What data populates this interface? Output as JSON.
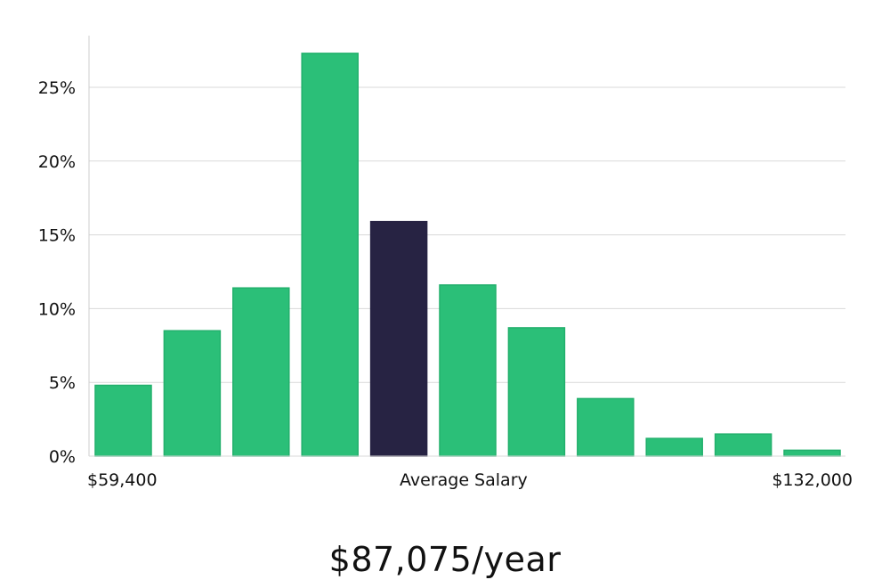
{
  "chart_data": {
    "type": "bar",
    "values": [
      4.8,
      8.5,
      11.4,
      27.3,
      15.9,
      11.6,
      8.7,
      3.9,
      1.2,
      1.5,
      0.4
    ],
    "highlight_index": 4,
    "ylim": [
      0,
      28.5
    ],
    "y_ticks": [
      0,
      5,
      10,
      15,
      20,
      25
    ],
    "y_tick_labels": [
      "0%",
      "5%",
      "10%",
      "15%",
      "20%",
      "25%"
    ],
    "x_labels": {
      "min": "$59,400",
      "center": "Average Salary",
      "max": "$132,000"
    },
    "grid": true,
    "colors": {
      "bar": "#2bbf78",
      "bar_edge": "#22b06c",
      "highlight": "#272343",
      "grid": "#d9d9d9",
      "axis": "#cccccc"
    }
  },
  "headline": "$87,075/year"
}
